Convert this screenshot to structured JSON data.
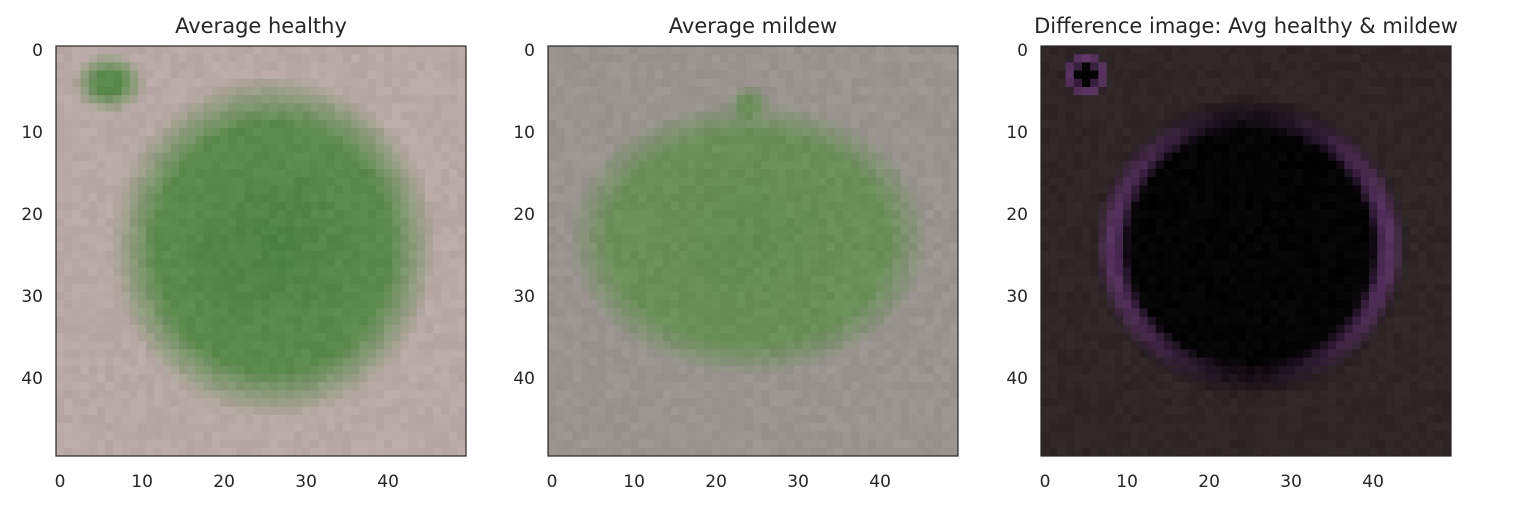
{
  "chart_data": [
    {
      "type": "heatmap",
      "title": "Average healthy",
      "xlabel": "",
      "ylabel": "",
      "xlim": [
        -0.5,
        49.5
      ],
      "ylim": [
        49.5,
        -0.5
      ],
      "x_ticks": [
        0,
        10,
        20,
        30,
        40
      ],
      "y_ticks": [
        0,
        10,
        20,
        30,
        40
      ],
      "image_size": [
        50,
        50
      ],
      "image": {
        "description_colors": {
          "background": "#b9a9a6",
          "leaf": "#5a8a4c",
          "leaf_center": "#4e8242"
        },
        "leaf_shape": "broad rounded leaf with pointed upper-left tip",
        "leaf_center": [
          26,
          24
        ]
      }
    },
    {
      "type": "heatmap",
      "title": "Average mildew",
      "xlabel": "",
      "ylabel": "",
      "xlim": [
        -0.5,
        49.5
      ],
      "ylim": [
        49.5,
        -0.5
      ],
      "x_ticks": [
        0,
        10,
        20,
        30,
        40
      ],
      "y_ticks": [
        0,
        10,
        20,
        30,
        40
      ],
      "image_size": [
        50,
        50
      ],
      "image": {
        "description_colors": {
          "background": "#99948f",
          "leaf": "#6a8f58",
          "leaf_center": "#648c52"
        },
        "leaf_shape": "oval leaf with small tip at top-center",
        "leaf_center": [
          24,
          23
        ]
      }
    },
    {
      "type": "heatmap",
      "title": "Difference image: Avg healthy & mildew",
      "xlabel": "",
      "ylabel": "",
      "xlim": [
        -0.5,
        49.5
      ],
      "ylim": [
        49.5,
        -0.5
      ],
      "x_ticks": [
        0,
        10,
        20,
        30,
        40
      ],
      "y_ticks": [
        0,
        10,
        20,
        30,
        40
      ],
      "image_size": [
        50,
        50
      ],
      "image": {
        "description_colors": {
          "background": "#2f2626",
          "leaf": "#050405",
          "edge": "#6a3a78"
        },
        "leaf_shape": "dark leaf silhouette with purple edge highlights",
        "leaf_center": [
          25,
          24
        ]
      }
    }
  ]
}
